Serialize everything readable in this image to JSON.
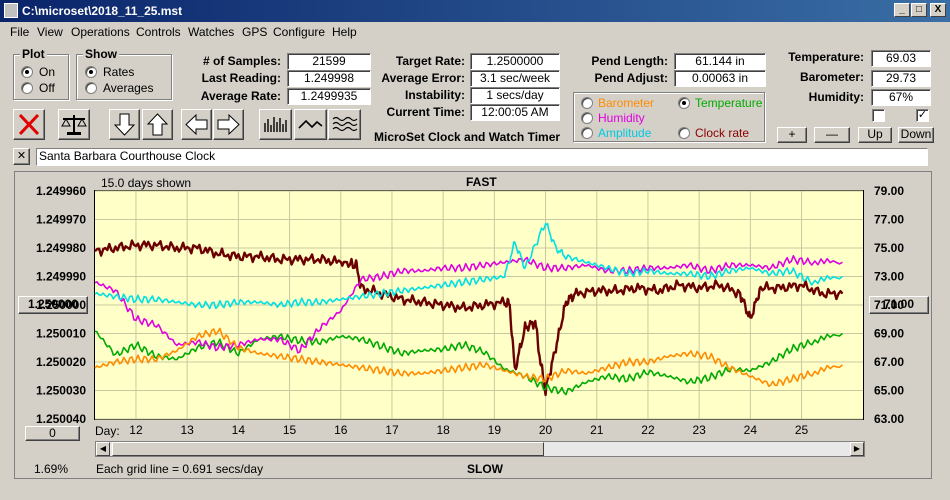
{
  "window": {
    "title": "C:\\microset\\2018_11_25.mst",
    "min": "_",
    "max": "□",
    "close": "X"
  },
  "menu": [
    "File",
    "View",
    "Operations",
    "Controls",
    "Watches",
    "GPS",
    "Configure",
    "Help"
  ],
  "plot_group": {
    "title": "Plot",
    "on": "On",
    "off": "Off",
    "selected": "On"
  },
  "show_group": {
    "title": "Show",
    "rates": "Rates",
    "averages": "Averages",
    "selected": "Rates"
  },
  "stats": {
    "samples_label": "# of Samples:",
    "samples": "21599",
    "last_label": "Last Reading:",
    "last": "1.249998",
    "avg_label": "Average Rate:",
    "avg": "1.2499935",
    "target_label": "Target Rate:",
    "target": "1.2500000",
    "avgerr_label": "Average Error:",
    "avgerr": "3.1 sec/week",
    "instab_label": "Instability:",
    "instab": "1 secs/day",
    "time_label": "Current Time:",
    "time": "12:00:05 AM",
    "pend_len_label": "Pend Length:",
    "pend_len": "61.144 in",
    "pend_adj_label": "Pend Adjust:",
    "pend_adj": "0.00063 in",
    "temp_label": "Temperature:",
    "temp": "69.03",
    "baro_label": "Barometer:",
    "baro": "29.73",
    "hum_label": "Humidity:",
    "hum": "67%"
  },
  "app_caption": "MicroSet Clock and Watch Timer",
  "sensor_options": {
    "barometer": "Barometer",
    "temperature": "Temperature",
    "humidity": "Humidity",
    "amplitude": "Amplitude",
    "clock_rate": "Clock rate",
    "selected": "Temperature"
  },
  "adjust_buttons": {
    "plus": "+",
    "minus": "—",
    "up": "Up",
    "down": "Down"
  },
  "clock_name": "Santa Barbara Courthouse Clock",
  "chart_header": {
    "days_shown": "15.0 days shown",
    "fast": "FAST",
    "slow": "SLOW",
    "grid_note": "Each grid line = 0.691 secs/day",
    "day_label": "Day:",
    "percent": "1.69%",
    "left_center": "1.250000",
    "right_center": "71.00",
    "zero_btn": "0"
  },
  "colors": {
    "rate": "#6b0000",
    "temperature": "#00aa00",
    "humidity": "#e000e0",
    "barometer": "#ff8c00",
    "amplitude": "#00e0e0",
    "plot_bg": "#ffffc8"
  },
  "chart_data": {
    "type": "line",
    "xlabel": "Day:",
    "x_ticks": [
      "12",
      "13",
      "14",
      "15",
      "16",
      "17",
      "18",
      "19",
      "20",
      "21",
      "22",
      "23",
      "24",
      "25"
    ],
    "xlim": [
      11.2,
      26.2
    ],
    "left_axis": {
      "ticks": [
        "1.249960",
        "1.249970",
        "1.249980",
        "1.249990",
        "1.250000",
        "1.250010",
        "1.250020",
        "1.250030",
        "1.250040"
      ],
      "ylim": [
        1.24996,
        1.25004
      ],
      "inverted": true
    },
    "right_axis": {
      "ticks": [
        "79.00",
        "77.00",
        "75.00",
        "73.00",
        "71.00",
        "69.00",
        "67.00",
        "65.00",
        "63.00"
      ],
      "ylim": [
        63,
        79
      ]
    },
    "series": [
      {
        "name": "Clock rate",
        "axis": "left",
        "color": "#6b0000",
        "x": [
          11.2,
          11.6,
          12.0,
          12.4,
          12.8,
          13.2,
          13.6,
          14.0,
          14.4,
          14.8,
          15.2,
          15.6,
          16.0,
          16.3,
          16.4,
          16.8,
          17.2,
          17.6,
          18.0,
          18.4,
          18.8,
          19.2,
          19.3,
          19.4,
          19.6,
          19.8,
          19.9,
          20.0,
          20.2,
          20.4,
          20.6,
          21.0,
          21.4,
          21.8,
          22.2,
          22.6,
          23.0,
          23.4,
          23.8,
          24.0,
          24.2,
          24.6,
          25.0,
          25.4,
          25.8
        ],
        "y": [
          1.249981,
          1.24998,
          1.249979,
          1.249979,
          1.24998,
          1.24998,
          1.249982,
          1.249983,
          1.249983,
          1.249984,
          1.249984,
          1.249984,
          1.249985,
          1.249986,
          1.249994,
          1.249996,
          1.249998,
          1.249999,
          1.25,
          1.250001,
          1.25,
          1.249999,
          1.25,
          1.250023,
          1.250008,
          1.250006,
          1.25002,
          1.25003,
          1.250015,
          1.249999,
          1.249996,
          1.249995,
          1.249995,
          1.249994,
          1.249995,
          1.249993,
          1.249994,
          1.249993,
          1.249996,
          1.250005,
          1.249994,
          1.249994,
          1.249993,
          1.249996,
          1.249996
        ]
      },
      {
        "name": "Temperature",
        "axis": "right",
        "color": "#00aa00",
        "x": [
          11.2,
          11.6,
          12.0,
          12.4,
          12.8,
          13.2,
          13.6,
          14.0,
          14.4,
          14.8,
          15.2,
          15.6,
          16.0,
          16.4,
          16.8,
          17.2,
          17.6,
          18.0,
          18.4,
          18.8,
          19.2,
          19.6,
          20.0,
          20.4,
          20.8,
          21.2,
          21.6,
          22.0,
          22.4,
          22.8,
          23.2,
          23.6,
          24.0,
          24.4,
          24.8,
          25.2,
          25.8
        ],
        "y": [
          69.2,
          67.5,
          68.2,
          67.4,
          67.2,
          68.0,
          68.4,
          67.6,
          68.6,
          68.8,
          68.5,
          68.4,
          68.8,
          68.6,
          68.1,
          67.6,
          67.8,
          67.9,
          68.2,
          67.7,
          66.5,
          66.0,
          65.2,
          64.9,
          65.6,
          66.0,
          65.8,
          66.3,
          66.0,
          65.6,
          65.9,
          66.5,
          66.4,
          67.0,
          67.9,
          68.4,
          69.0
        ]
      },
      {
        "name": "Humidity",
        "axis": "right",
        "color": "#e000e0",
        "x": [
          11.2,
          11.6,
          12.0,
          12.4,
          12.8,
          13.2,
          13.6,
          14.0,
          14.4,
          14.8,
          15.2,
          15.6,
          16.0,
          16.4,
          16.8,
          17.2,
          17.6,
          18.0,
          18.4,
          18.8,
          19.2,
          19.6,
          20.0,
          20.4,
          20.8,
          21.2,
          21.6,
          22.0,
          22.4,
          22.8,
          23.2,
          23.6,
          24.0,
          24.4,
          24.8,
          25.2,
          25.8
        ],
        "y": [
          72.6,
          72.0,
          70.0,
          69.6,
          68.2,
          68.4,
          68.0,
          68.2,
          68.6,
          68.6,
          67.8,
          69.4,
          70.6,
          72.8,
          73.0,
          73.4,
          73.4,
          73.6,
          73.6,
          73.8,
          74.0,
          74.2,
          73.6,
          73.6,
          73.8,
          73.4,
          73.4,
          73.6,
          73.6,
          73.8,
          73.4,
          73.8,
          73.8,
          73.6,
          74.2,
          74.0,
          74.0
        ]
      },
      {
        "name": "Barometer",
        "axis": "right",
        "color": "#ff8c00",
        "x": [
          11.2,
          11.6,
          12.0,
          12.4,
          12.8,
          13.2,
          13.6,
          14.0,
          14.4,
          14.8,
          15.2,
          15.6,
          16.0,
          16.4,
          16.8,
          17.2,
          17.6,
          18.0,
          18.4,
          18.8,
          19.2,
          19.6,
          20.0,
          20.4,
          20.8,
          21.2,
          21.6,
          22.0,
          22.4,
          22.8,
          23.2,
          23.6,
          24.0,
          24.4,
          24.8,
          25.2,
          25.8
        ],
        "y": [
          66.6,
          67.0,
          67.2,
          67.2,
          67.8,
          68.8,
          69.2,
          68.0,
          67.6,
          67.4,
          67.2,
          67.0,
          66.8,
          66.6,
          66.4,
          66.2,
          66.2,
          66.4,
          66.6,
          66.8,
          66.4,
          66.0,
          65.8,
          66.4,
          66.2,
          66.6,
          67.0,
          67.0,
          67.4,
          67.6,
          67.4,
          66.6,
          66.0,
          65.4,
          65.8,
          66.2,
          66.8
        ]
      },
      {
        "name": "Amplitude",
        "axis": "right",
        "color": "#00e0e0",
        "x": [
          11.2,
          11.6,
          12.0,
          12.4,
          12.8,
          13.2,
          13.6,
          14.0,
          14.4,
          14.8,
          15.2,
          15.6,
          16.0,
          16.4,
          16.8,
          17.2,
          17.6,
          18.0,
          18.4,
          18.8,
          19.2,
          19.4,
          19.6,
          20.0,
          20.2,
          20.4,
          20.8,
          21.2,
          21.6,
          22.0,
          22.4,
          22.8,
          23.2,
          23.6,
          24.0,
          24.4,
          24.8,
          25.2,
          25.8
        ],
        "y": [
          71.8,
          71.6,
          71.4,
          71.4,
          71.2,
          71.0,
          71.0,
          71.2,
          71.2,
          71.0,
          71.2,
          71.2,
          71.4,
          71.6,
          71.8,
          72.0,
          72.2,
          72.4,
          72.6,
          72.8,
          73.0,
          75.4,
          73.6,
          76.8,
          75.0,
          74.4,
          74.0,
          73.6,
          73.2,
          73.4,
          73.2,
          73.2,
          73.0,
          73.4,
          73.6,
          73.2,
          73.4,
          72.6,
          73.0
        ]
      }
    ]
  }
}
